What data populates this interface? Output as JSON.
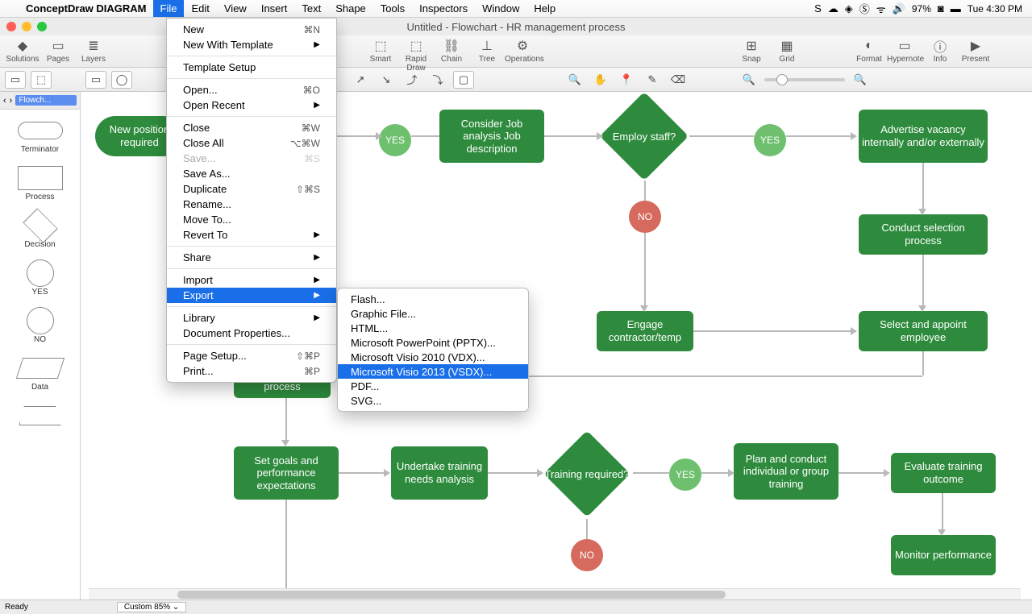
{
  "menubar": {
    "app": "ConceptDraw DIAGRAM",
    "items": [
      "File",
      "Edit",
      "View",
      "Insert",
      "Text",
      "Shape",
      "Tools",
      "Inspectors",
      "Window",
      "Help"
    ],
    "active": "File",
    "battery": "97%",
    "clock": "Tue 4:30 PM"
  },
  "doc_title": "Untitled - Flowchart - HR management process",
  "toolbar": {
    "left": [
      {
        "label": "Solutions",
        "icon": "◆"
      },
      {
        "label": "Pages",
        "icon": "▭"
      },
      {
        "label": "Layers",
        "icon": "≣"
      }
    ],
    "mid": [
      {
        "label": "Smart",
        "icon": "⬚"
      },
      {
        "label": "Rapid Draw",
        "icon": "⬚"
      },
      {
        "label": "Chain",
        "icon": "⛓"
      },
      {
        "label": "Tree",
        "icon": "⊥"
      },
      {
        "label": "Operations",
        "icon": "⚙"
      }
    ],
    "right1": [
      {
        "label": "Snap",
        "icon": "⊞"
      },
      {
        "label": "Grid",
        "icon": "▦"
      }
    ],
    "right2": [
      {
        "label": "Format",
        "icon": "◐"
      },
      {
        "label": "Hypernote",
        "icon": "▭"
      },
      {
        "label": "Info",
        "icon": "ⓘ"
      },
      {
        "label": "Present",
        "icon": "▶"
      }
    ]
  },
  "sidebar": {
    "selector": "Flowch...",
    "shapes": [
      "Terminator",
      "Process",
      "Decision",
      "YES",
      "NO",
      "Data",
      ""
    ]
  },
  "file_menu": [
    {
      "t": "New",
      "s": "⌘N"
    },
    {
      "t": "New With Template",
      "sub": true
    },
    {
      "sep": true
    },
    {
      "t": "Template Setup"
    },
    {
      "sep": true
    },
    {
      "t": "Open...",
      "s": "⌘O"
    },
    {
      "t": "Open Recent",
      "sub": true
    },
    {
      "sep": true
    },
    {
      "t": "Close",
      "s": "⌘W"
    },
    {
      "t": "Close All",
      "s": "⌥⌘W"
    },
    {
      "t": "Save...",
      "s": "⌘S",
      "disabled": true
    },
    {
      "t": "Save As..."
    },
    {
      "t": "Duplicate",
      "s": "⇧⌘S"
    },
    {
      "t": "Rename..."
    },
    {
      "t": "Move To..."
    },
    {
      "t": "Revert To",
      "sub": true
    },
    {
      "sep": true
    },
    {
      "t": "Share",
      "sub": true
    },
    {
      "sep": true
    },
    {
      "t": "Import",
      "sub": true
    },
    {
      "t": "Export",
      "sub": true,
      "hl": true
    },
    {
      "sep": true
    },
    {
      "t": "Library",
      "sub": true
    },
    {
      "t": "Document Properties..."
    },
    {
      "sep": true
    },
    {
      "t": "Page Setup...",
      "s": "⇧⌘P"
    },
    {
      "t": "Print...",
      "s": "⌘P"
    }
  ],
  "export_submenu": [
    "Flash...",
    "Graphic File...",
    "HTML...",
    "Microsoft PowerPoint (PPTX)...",
    "Microsoft Visio 2010 (VDX)...",
    "Microsoft Visio 2013 (VSDX)...",
    "PDF...",
    "SVG..."
  ],
  "export_hl": "Microsoft Visio 2013 (VSDX)...",
  "flowchart": {
    "green": "#2e8b3d",
    "yes_color": "#6ec06e",
    "no_color": "#d66a5e",
    "nodes": {
      "new_position": "New position required",
      "consider": "Consider\nJob analysis\nJob description",
      "employ": "Employ staff?",
      "advertise": "Advertise vacancy internally and/or externally",
      "conduct_sel": "Conduct selection process",
      "engage": "Engage contractor/temp",
      "select_appoint": "Select and appoint employee",
      "process": "process",
      "set_goals": "Set goals and performance expectations",
      "undertake": "Undertake training needs analysis",
      "training_req": "Training required?",
      "plan_conduct": "Plan and conduct individual or group training",
      "evaluate": "Evaluate training outcome",
      "monitor": "Monitor performance"
    },
    "yes": "YES",
    "no": "NO"
  },
  "status": {
    "ready": "Ready",
    "zoom": "Custom 85%"
  }
}
